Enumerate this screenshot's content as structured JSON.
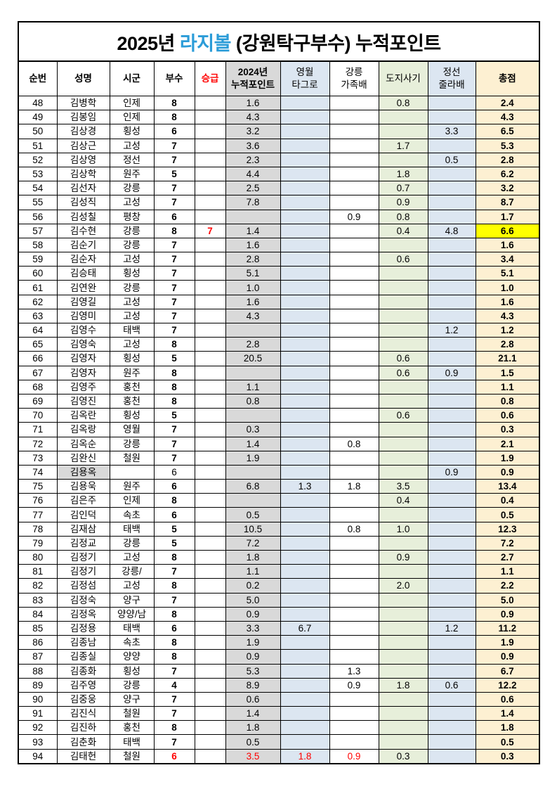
{
  "title": {
    "prefix": "2025년 ",
    "highlight": "라지볼",
    "suffix": " (강원탁구부수) 누적포인트"
  },
  "colors": {
    "accent_blue": "#2b9cd8",
    "red": "#ff0000",
    "col_2024_bg": "#d9d9d9",
    "col_blue_bg": "#dce6f1",
    "col_green_bg": "#e7efda",
    "col_total_bg": "#fdf0d2",
    "highlight_yellow": "#ffff00"
  },
  "columns": [
    {
      "key": "no",
      "label": "순번",
      "bg": "white",
      "header_bold": true
    },
    {
      "key": "name",
      "label": "성명",
      "bg": "white",
      "header_bold": true
    },
    {
      "key": "region",
      "label": "시군",
      "bg": "white",
      "header_bold": true
    },
    {
      "key": "bu",
      "label": "부수",
      "bg": "white",
      "header_bold": true
    },
    {
      "key": "seung",
      "label": "승급",
      "bg": "white",
      "header_bold": true,
      "header_red": true
    },
    {
      "key": "p24",
      "label": "2024년\n누적포인트",
      "bg": "gray",
      "header_bold": true
    },
    {
      "key": "ym",
      "label": "영월\n타그로",
      "bg": "blue",
      "header_bold": false
    },
    {
      "key": "gn",
      "label": "강릉\n가족배",
      "bg": "white",
      "header_bold": false
    },
    {
      "key": "dj",
      "label": "도지사기",
      "bg": "green",
      "header_bold": false
    },
    {
      "key": "js",
      "label": "정선\n줄라배",
      "bg": "blue",
      "header_bold": false
    },
    {
      "key": "tot",
      "label": "총점",
      "bg": "cream",
      "header_bold": true
    }
  ],
  "rows": [
    {
      "no": "48",
      "name": "김병학",
      "region": "인제",
      "bu": "8",
      "seung": "",
      "p24": "1.6",
      "ym": "",
      "gn": "",
      "dj": "0.8",
      "js": "",
      "tot": "2.4"
    },
    {
      "no": "49",
      "name": "김봉임",
      "region": "인제",
      "bu": "8",
      "seung": "",
      "p24": "4.3",
      "ym": "",
      "gn": "",
      "dj": "",
      "js": "",
      "tot": "4.3"
    },
    {
      "no": "50",
      "name": "김상경",
      "region": "횡성",
      "bu": "6",
      "seung": "",
      "p24": "3.2",
      "ym": "",
      "gn": "",
      "dj": "",
      "js": "3.3",
      "tot": "6.5"
    },
    {
      "no": "51",
      "name": "김상근",
      "region": "고성",
      "bu": "7",
      "seung": "",
      "p24": "3.6",
      "ym": "",
      "gn": "",
      "dj": "1.7",
      "js": "",
      "tot": "5.3"
    },
    {
      "no": "52",
      "name": "김상영",
      "region": "정선",
      "bu": "7",
      "seung": "",
      "p24": "2.3",
      "ym": "",
      "gn": "",
      "dj": "",
      "js": "0.5",
      "tot": "2.8"
    },
    {
      "no": "53",
      "name": "김상학",
      "region": "원주",
      "bu": "5",
      "seung": "",
      "p24": "4.4",
      "ym": "",
      "gn": "",
      "dj": "1.8",
      "js": "",
      "tot": "6.2"
    },
    {
      "no": "54",
      "name": "김선자",
      "region": "강릉",
      "bu": "7",
      "seung": "",
      "p24": "2.5",
      "ym": "",
      "gn": "",
      "dj": "0.7",
      "js": "",
      "tot": "3.2"
    },
    {
      "no": "55",
      "name": "김성직",
      "region": "고성",
      "bu": "7",
      "seung": "",
      "p24": "7.8",
      "ym": "",
      "gn": "",
      "dj": "0.9",
      "js": "",
      "tot": "8.7"
    },
    {
      "no": "56",
      "name": "김성칠",
      "region": "평창",
      "bu": "6",
      "seung": "",
      "p24": "",
      "ym": "",
      "gn": "0.9",
      "dj": "0.8",
      "js": "",
      "tot": "1.7"
    },
    {
      "no": "57",
      "name": "김수현",
      "region": "강릉",
      "bu": "8",
      "seung": "7",
      "p24": "1.4",
      "ym": "",
      "gn": "",
      "dj": "0.4",
      "js": "4.8",
      "tot": "6.6",
      "totBg": "yellow"
    },
    {
      "no": "58",
      "name": "김순기",
      "region": "강릉",
      "bu": "7",
      "seung": "",
      "p24": "1.6",
      "ym": "",
      "gn": "",
      "dj": "",
      "js": "",
      "tot": "1.6"
    },
    {
      "no": "59",
      "name": "김순자",
      "region": "고성",
      "bu": "7",
      "seung": "",
      "p24": "2.8",
      "ym": "",
      "gn": "",
      "dj": "0.6",
      "js": "",
      "tot": "3.4"
    },
    {
      "no": "60",
      "name": "김승태",
      "region": "횡성",
      "bu": "7",
      "seung": "",
      "p24": "5.1",
      "ym": "",
      "gn": "",
      "dj": "",
      "js": "",
      "tot": "5.1"
    },
    {
      "no": "61",
      "name": "김연완",
      "region": "강릉",
      "bu": "7",
      "seung": "",
      "p24": "1.0",
      "ym": "",
      "gn": "",
      "dj": "",
      "js": "",
      "tot": "1.0"
    },
    {
      "no": "62",
      "name": "김영길",
      "region": "고성",
      "bu": "7",
      "seung": "",
      "p24": "1.6",
      "ym": "",
      "gn": "",
      "dj": "",
      "js": "",
      "tot": "1.6"
    },
    {
      "no": "63",
      "name": "김영미",
      "region": "고성",
      "bu": "7",
      "seung": "",
      "p24": "4.3",
      "ym": "",
      "gn": "",
      "dj": "",
      "js": "",
      "tot": "4.3"
    },
    {
      "no": "64",
      "name": "김영수",
      "region": "태백",
      "bu": "7",
      "seung": "",
      "p24": "",
      "ym": "",
      "gn": "",
      "dj": "",
      "js": "1.2",
      "tot": "1.2"
    },
    {
      "no": "65",
      "name": "김영숙",
      "region": "고성",
      "bu": "8",
      "seung": "",
      "p24": "2.8",
      "ym": "",
      "gn": "",
      "dj": "",
      "js": "",
      "tot": "2.8"
    },
    {
      "no": "66",
      "name": "김영자",
      "region": "횡성",
      "bu": "5",
      "seung": "",
      "p24": "20.5",
      "ym": "",
      "gn": "",
      "dj": "0.6",
      "js": "",
      "tot": "21.1"
    },
    {
      "no": "67",
      "name": "김영자",
      "region": "원주",
      "bu": "8",
      "seung": "",
      "p24": "",
      "ym": "",
      "gn": "",
      "dj": "0.6",
      "js": "0.9",
      "tot": "1.5"
    },
    {
      "no": "68",
      "name": "김영주",
      "region": "홍천",
      "bu": "8",
      "seung": "",
      "p24": "1.1",
      "ym": "",
      "gn": "",
      "dj": "",
      "js": "",
      "tot": "1.1"
    },
    {
      "no": "69",
      "name": "김영진",
      "region": "홍천",
      "bu": "8",
      "seung": "",
      "p24": "0.8",
      "ym": "",
      "gn": "",
      "dj": "",
      "js": "",
      "tot": "0.8"
    },
    {
      "no": "70",
      "name": "김옥란",
      "region": "횡성",
      "bu": "5",
      "seung": "",
      "p24": "",
      "ym": "",
      "gn": "",
      "dj": "0.6",
      "js": "",
      "tot": "0.6"
    },
    {
      "no": "71",
      "name": "김옥랑",
      "region": "영월",
      "bu": "7",
      "seung": "",
      "p24": "0.3",
      "ym": "",
      "gn": "",
      "dj": "",
      "js": "",
      "tot": "0.3"
    },
    {
      "no": "72",
      "name": "김옥순",
      "region": "강릉",
      "bu": "7",
      "seung": "",
      "p24": "1.4",
      "ym": "",
      "gn": "0.8",
      "dj": "",
      "js": "",
      "tot": "2.1"
    },
    {
      "no": "73",
      "name": "김완신",
      "region": "철원",
      "bu": "7",
      "seung": "",
      "p24": "1.9",
      "ym": "",
      "gn": "",
      "dj": "",
      "js": "",
      "tot": "1.9"
    },
    {
      "no": "74",
      "name": "김용옥",
      "region": "",
      "bu": "6",
      "seung": "",
      "p24": "",
      "ym": "",
      "gn": "",
      "dj": "",
      "js": "0.9",
      "tot": "0.9",
      "nameBg": "gray",
      "buNormal": true
    },
    {
      "no": "75",
      "name": "김용욱",
      "region": "원주",
      "bu": "6",
      "seung": "",
      "p24": "6.8",
      "ym": "1.3",
      "gn": "1.8",
      "dj": "3.5",
      "js": "",
      "tot": "13.4"
    },
    {
      "no": "76",
      "name": "김은주",
      "region": "인제",
      "bu": "8",
      "seung": "",
      "p24": "",
      "ym": "",
      "gn": "",
      "dj": "0.4",
      "js": "",
      "tot": "0.4"
    },
    {
      "no": "77",
      "name": "김인덕",
      "region": "속초",
      "bu": "6",
      "seung": "",
      "p24": "0.5",
      "ym": "",
      "gn": "",
      "dj": "",
      "js": "",
      "tot": "0.5"
    },
    {
      "no": "78",
      "name": "김재삼",
      "region": "태백",
      "bu": "5",
      "seung": "",
      "p24": "10.5",
      "ym": "",
      "gn": "0.8",
      "dj": "1.0",
      "js": "",
      "tot": "12.3"
    },
    {
      "no": "79",
      "name": "김정교",
      "region": "강릉",
      "bu": "5",
      "seung": "",
      "p24": "7.2",
      "ym": "",
      "gn": "",
      "dj": "",
      "js": "",
      "tot": "7.2"
    },
    {
      "no": "80",
      "name": "김정기",
      "region": "고성",
      "bu": "8",
      "seung": "",
      "p24": "1.8",
      "ym": "",
      "gn": "",
      "dj": "0.9",
      "js": "",
      "tot": "2.7"
    },
    {
      "no": "81",
      "name": "김정기",
      "region": "강릉/",
      "bu": "7",
      "seung": "",
      "p24": "1.1",
      "ym": "",
      "gn": "",
      "dj": "",
      "js": "",
      "tot": "1.1"
    },
    {
      "no": "82",
      "name": "김정섬",
      "region": "고성",
      "bu": "8",
      "seung": "",
      "p24": "0.2",
      "ym": "",
      "gn": "",
      "dj": "2.0",
      "js": "",
      "tot": "2.2"
    },
    {
      "no": "83",
      "name": "김정숙",
      "region": "양구",
      "bu": "7",
      "seung": "",
      "p24": "5.0",
      "ym": "",
      "gn": "",
      "dj": "",
      "js": "",
      "tot": "5.0"
    },
    {
      "no": "84",
      "name": "김정옥",
      "region": "양양/남",
      "bu": "8",
      "seung": "",
      "p24": "0.9",
      "ym": "",
      "gn": "",
      "dj": "",
      "js": "",
      "tot": "0.9"
    },
    {
      "no": "85",
      "name": "김정용",
      "region": "태백",
      "bu": "6",
      "seung": "",
      "p24": "3.3",
      "ym": "6.7",
      "gn": "",
      "dj": "",
      "js": "1.2",
      "tot": "11.2"
    },
    {
      "no": "86",
      "name": "김종남",
      "region": "속초",
      "bu": "8",
      "seung": "",
      "p24": "1.9",
      "ym": "",
      "gn": "",
      "dj": "",
      "js": "",
      "tot": "1.9"
    },
    {
      "no": "87",
      "name": "김종실",
      "region": "양양",
      "bu": "8",
      "seung": "",
      "p24": "0.9",
      "ym": "",
      "gn": "",
      "dj": "",
      "js": "",
      "tot": "0.9"
    },
    {
      "no": "88",
      "name": "김종화",
      "region": "횡성",
      "bu": "7",
      "seung": "",
      "p24": "5.3",
      "ym": "",
      "gn": "1.3",
      "dj": "",
      "js": "",
      "tot": "6.7"
    },
    {
      "no": "89",
      "name": "김주영",
      "region": "강릉",
      "bu": "4",
      "seung": "",
      "p24": "8.9",
      "ym": "",
      "gn": "0.9",
      "dj": "1.8",
      "js": "0.6",
      "tot": "12.2"
    },
    {
      "no": "90",
      "name": "김중웅",
      "region": "양구",
      "bu": "7",
      "seung": "",
      "p24": "0.6",
      "ym": "",
      "gn": "",
      "dj": "",
      "js": "",
      "tot": "0.6"
    },
    {
      "no": "91",
      "name": "김진식",
      "region": "철원",
      "bu": "7",
      "seung": "",
      "p24": "1.4",
      "ym": "",
      "gn": "",
      "dj": "",
      "js": "",
      "tot": "1.4"
    },
    {
      "no": "92",
      "name": "김진하",
      "region": "홍천",
      "bu": "8",
      "seung": "",
      "p24": "1.8",
      "ym": "",
      "gn": "",
      "dj": "",
      "js": "",
      "tot": "1.8"
    },
    {
      "no": "93",
      "name": "김춘화",
      "region": "태백",
      "bu": "7",
      "seung": "",
      "p24": "0.5",
      "ym": "",
      "gn": "",
      "dj": "",
      "js": "",
      "tot": "0.5"
    },
    {
      "no": "94",
      "name": "김태헌",
      "region": "철원",
      "bu": "6",
      "seung": "",
      "p24": "3.5",
      "ym": "1.8",
      "gn": "0.9",
      "dj": "0.3",
      "js": "",
      "tot": "0.3",
      "red": [
        "bu",
        "p24",
        "ym",
        "gn"
      ]
    }
  ]
}
